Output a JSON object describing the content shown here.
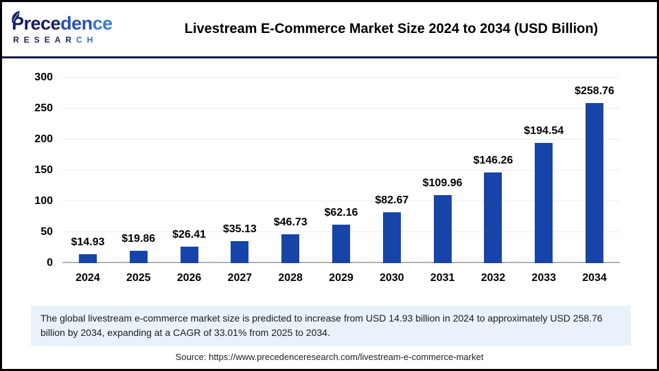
{
  "header": {
    "logo": {
      "p1": "Prece",
      "p2": "den",
      "p3": "ce",
      "r1": "RESEAR",
      "r2": "CH"
    },
    "title": "Livestream E-Commerce Market Size 2024 to 2034 (USD Billion)"
  },
  "chart_data": {
    "type": "bar",
    "title": "Livestream E-Commerce Market Size 2024 to 2034 (USD Billion)",
    "categories": [
      "2024",
      "2025",
      "2026",
      "2027",
      "2028",
      "2029",
      "2030",
      "2031",
      "2032",
      "2033",
      "2034"
    ],
    "values": [
      14.93,
      19.86,
      26.41,
      35.13,
      46.73,
      62.16,
      82.67,
      109.96,
      146.26,
      194.54,
      258.76
    ],
    "labels": [
      "$14.93",
      "$19.86",
      "$26.41",
      "$35.13",
      "$46.73",
      "$62.16",
      "$82.67",
      "$109.96",
      "$146.26",
      "$194.54",
      "$258.76"
    ],
    "xlabel": "",
    "ylabel": "",
    "ylim": [
      0,
      300
    ],
    "yticks": [
      0,
      50,
      100,
      150,
      200,
      250,
      300
    ],
    "grid": true,
    "legend": false,
    "bar_color": "#1644a8"
  },
  "summary": {
    "text": "The global livestream e-commerce market size is predicted to increase from USD 14.93 billion in 2024 to approximately USD 258.76 billion by 2034, expanding at a CAGR of 33.01% from 2025 to 2034."
  },
  "source": {
    "text": "Source: https://www.precedenceresearch.com/livestream-e-commerce-market"
  },
  "colors": {
    "bar": "#1644a8",
    "header_divider": "#16164a",
    "logo_navy": "#161e5e",
    "logo_blue": "#2f6bc8",
    "summary_bg": "#e9f1fb",
    "gridline": "#ececec",
    "axis_line": "#b0b0b0"
  }
}
